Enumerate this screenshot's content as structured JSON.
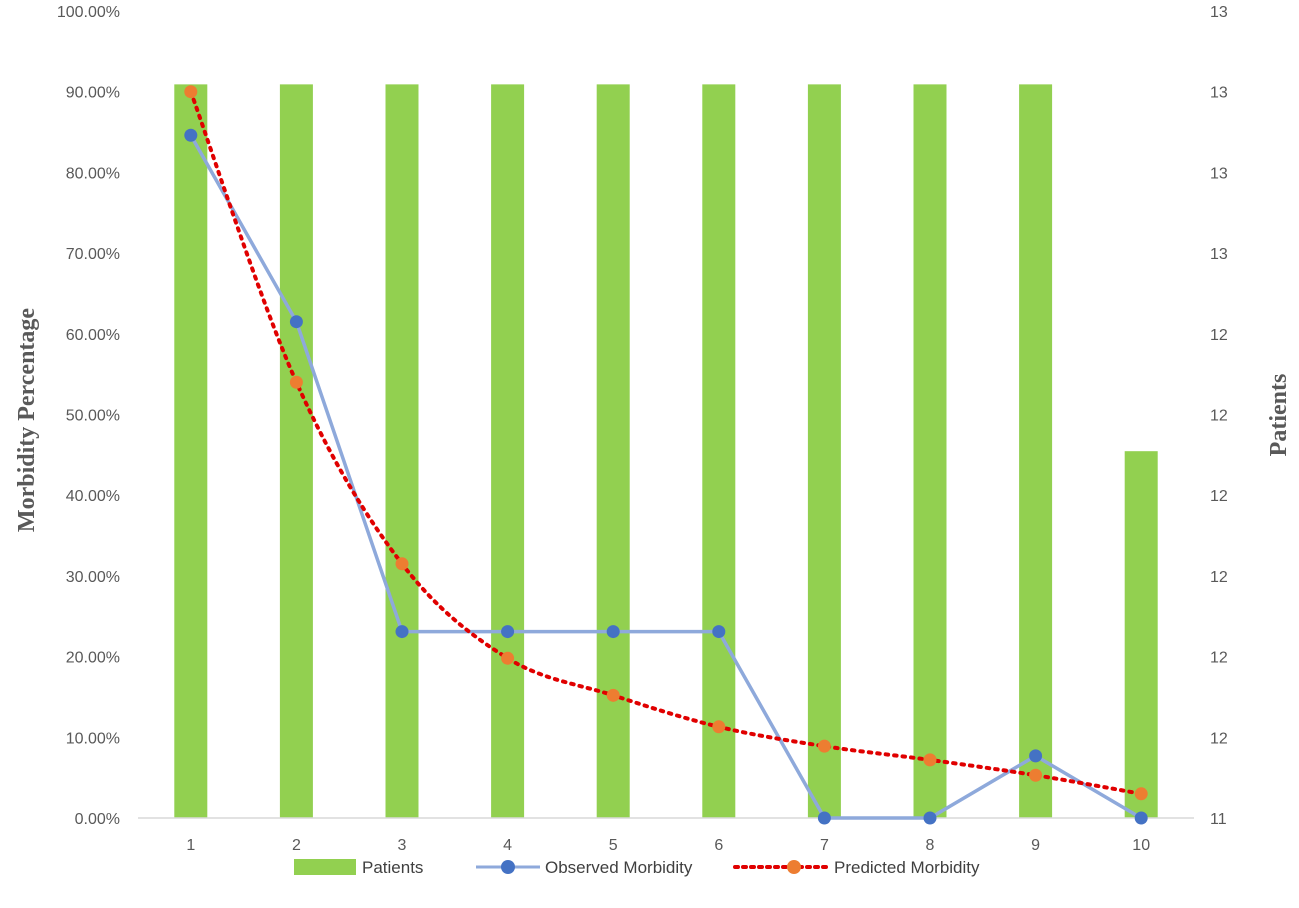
{
  "chart_data": {
    "type": "bar+line",
    "categories": [
      "1",
      "2",
      "3",
      "4",
      "5",
      "6",
      "7",
      "8",
      "9",
      "10"
    ],
    "left_axis": {
      "label": "Morbidity Percentage",
      "range": [
        0,
        100
      ],
      "ticks": [
        "0.00%",
        "10.00%",
        "20.00%",
        "30.00%",
        "40.00%",
        "50.00%",
        "60.00%",
        "70.00%",
        "80.00%",
        "90.00%",
        "100.00%"
      ]
    },
    "right_axis": {
      "label": "Patients",
      "range": [
        11,
        13.2
      ],
      "ticks": [
        "11",
        "12",
        "12",
        "12",
        "12",
        "12",
        "12",
        "13",
        "13",
        "13",
        "13"
      ]
    },
    "series": [
      {
        "name": "Patients",
        "kind": "bar",
        "axis": "right",
        "color": "#92D050",
        "values": [
          13,
          13,
          13,
          13,
          13,
          13,
          13,
          13,
          13,
          12
        ]
      },
      {
        "name": "Observed Morbidity",
        "kind": "line",
        "axis": "left",
        "color": "#8EA9DB",
        "marker_color": "#4472C4",
        "values": [
          84.6,
          61.5,
          23.1,
          23.1,
          23.1,
          23.1,
          0,
          0,
          7.7,
          0
        ]
      },
      {
        "name": "Predicted Morbidity",
        "kind": "dotted-line",
        "axis": "left",
        "color": "#E00000",
        "marker_color": "#ED7D31",
        "values": [
          90.0,
          54.0,
          31.5,
          19.8,
          15.2,
          11.3,
          8.9,
          7.2,
          5.3,
          3.0
        ]
      }
    ],
    "legend_position": "bottom",
    "grid": false
  }
}
